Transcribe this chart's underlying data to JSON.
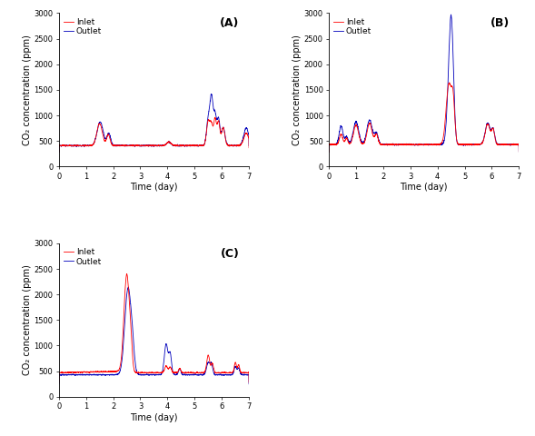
{
  "inlet_color": "#FF0000",
  "outlet_color": "#0000BB",
  "inlet_label": "Inlet",
  "outlet_label": "Outlet",
  "xlabel": "Time (day)",
  "ylabel": "CO₂ concentration (ppm)",
  "ylim": [
    0,
    3000
  ],
  "xlim": [
    0,
    7
  ],
  "xticks": [
    0,
    1,
    2,
    3,
    4,
    5,
    6,
    7
  ],
  "yticks": [
    0,
    500,
    1000,
    1500,
    2000,
    2500,
    3000
  ],
  "panel_labels": [
    "(A)",
    "(B)",
    "(C)"
  ],
  "line_width": 0.6,
  "background_color": "#ffffff",
  "legend_fontsize": 6.5,
  "axis_fontsize": 7,
  "tick_fontsize": 6,
  "panel_label_fontsize": 9
}
